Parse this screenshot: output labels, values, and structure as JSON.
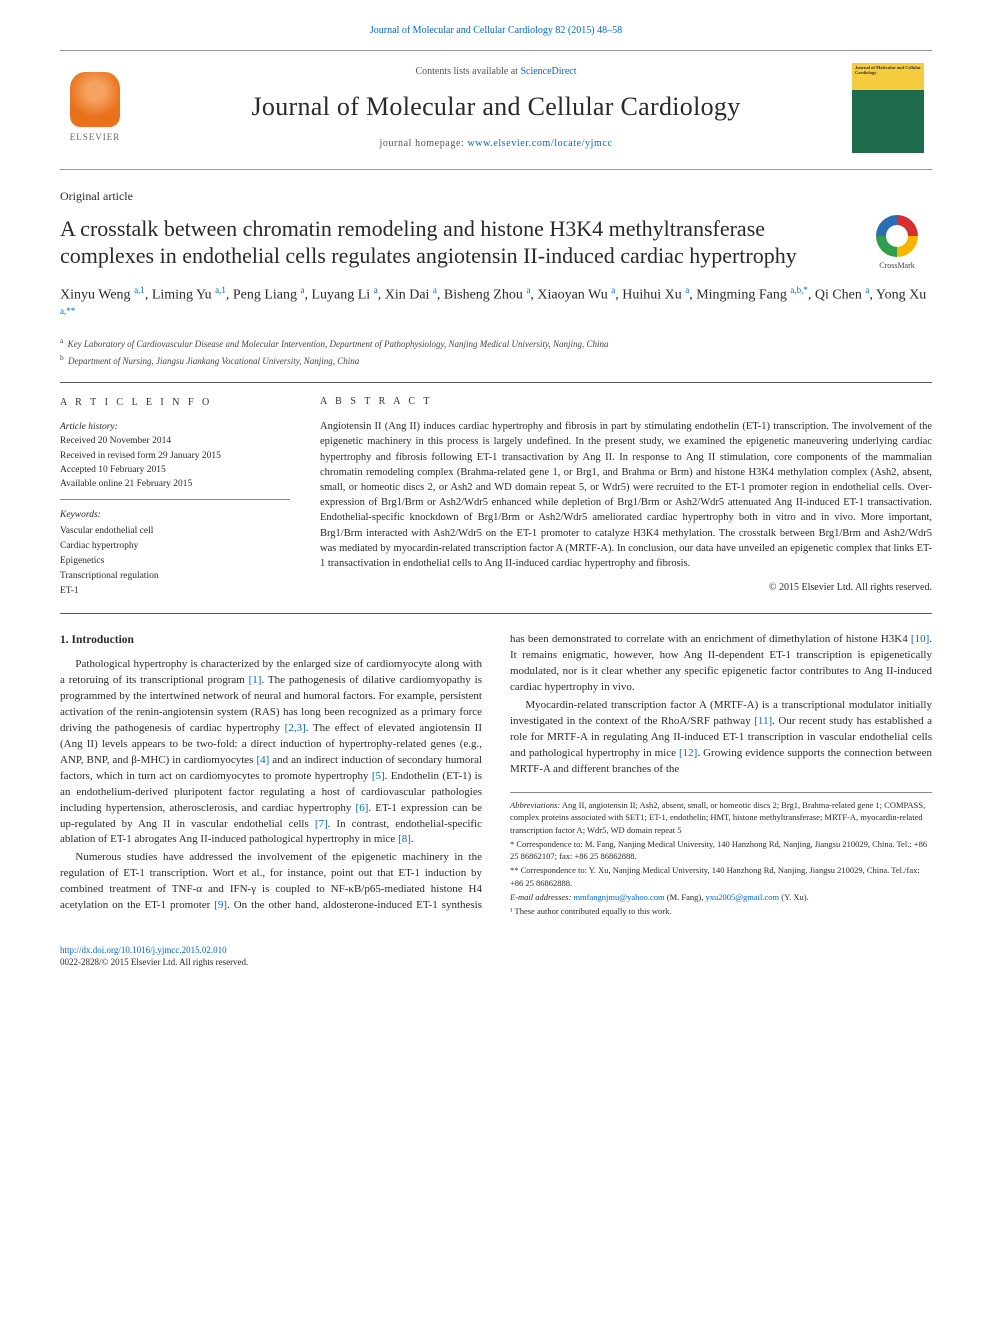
{
  "topLink": {
    "journalRef": "Journal of Molecular and Cellular Cardiology 82 (2015) 48–58"
  },
  "masthead": {
    "contentsLine": "Contents lists available at ",
    "contentsLinkText": "ScienceDirect",
    "journalName": "Journal of Molecular and Cellular Cardiology",
    "homepageLabel": "journal homepage: ",
    "homepageUrl": "www.elsevier.com/locate/yjmcc",
    "publisher": "ELSEVIER",
    "coverTitle": "Journal of Molecular and Cellular Cardiology"
  },
  "articleType": "Original article",
  "title": "A crosstalk between chromatin remodeling and histone H3K4 methyltransferase complexes in endothelial cells regulates angiotensin II-induced cardiac hypertrophy",
  "crossmark": "CrossMark",
  "authorsHtml": "Xinyu Weng <sup>a,1</sup>, Liming Yu <sup>a,1</sup>, Peng Liang <sup>a</sup>, Luyang Li <sup>a</sup>, Xin Dai <sup>a</sup>, Bisheng Zhou <sup>a</sup>, Xiaoyan Wu <sup>a</sup>, Huihui Xu <sup>a</sup>, Mingming Fang <sup>a,b,*</sup>, Qi Chen <sup>a</sup>, Yong Xu <sup>a,**</sup>",
  "affiliations": {
    "a": "Key Laboratory of Cardiovascular Disease and Molecular Intervention, Department of Pathophysiology, Nanjing Medical University, Nanjing, China",
    "b": "Department of Nursing, Jiangsu Jiankang Vocational University, Nanjing, China"
  },
  "articleInfo": {
    "heading": "A R T I C L E   I N F O",
    "historyLabel": "Article history:",
    "received": "Received 20 November 2014",
    "revised": "Received in revised form 29 January 2015",
    "accepted": "Accepted 10 February 2015",
    "online": "Available online 21 February 2015",
    "keywordsLabel": "Keywords:",
    "keywords": [
      "Vascular endothelial cell",
      "Cardiac hypertrophy",
      "Epigenetics",
      "Transcriptional regulation",
      "ET-1"
    ]
  },
  "abstract": {
    "heading": "A B S T R A C T",
    "text": "Angiotensin II (Ang II) induces cardiac hypertrophy and fibrosis in part by stimulating endothelin (ET-1) transcription. The involvement of the epigenetic machinery in this process is largely undefined. In the present study, we examined the epigenetic maneuvering underlying cardiac hypertrophy and fibrosis following ET-1 transactivation by Ang II. In response to Ang II stimulation, core components of the mammalian chromatin remodeling complex (Brahma-related gene 1, or Brg1, and Brahma or Brm) and histone H3K4 methylation complex (Ash2, absent, small, or homeotic discs 2, or Ash2 and WD domain repeat 5, or Wdr5) were recruited to the ET-1 promoter region in endothelial cells. Over-expression of Brg1/Brm or Ash2/Wdr5 enhanced while depletion of Brg1/Brm or Ash2/Wdr5 attenuated Ang II-induced ET-1 transactivation. Endothelial-specific knockdown of Brg1/Brm or Ash2/Wdr5 ameliorated cardiac hypertrophy both in vitro and in vivo. More important, Brg1/Brm interacted with Ash2/Wdr5 on the ET-1 promoter to catalyze H3K4 methylation. The crosstalk between Brg1/Brm and Ash2/Wdr5 was mediated by myocardin-related transcription factor A (MRTF-A). In conclusion, our data have unveiled an epigenetic complex that links ET-1 transactivation in endothelial cells to Ang II-induced cardiac hypertrophy and fibrosis.",
    "copyright": "© 2015 Elsevier Ltd. All rights reserved."
  },
  "body": {
    "introHeading": "1. Introduction",
    "para1a": "Pathological hypertrophy is characterized by the enlarged size of cardiomyocyte along with a retoruing of its transcriptional program ",
    "ref1": "[1]",
    "para1b": ". The pathogenesis of dilative cardiomyopathy is programmed by the intertwined network of neural and humoral factors. For example, persistent activation of the renin-angiotensin system (RAS) has long been recognized as a primary force driving the pathogenesis of cardiac hypertrophy ",
    "ref23": "[2,3]",
    "para1c": ". The effect of elevated angiotensin II (Ang II) levels appears to be two-fold: a direct induction of hypertrophy-related genes (e.g., ANP, BNP, and β-MHC) in cardiomyocytes ",
    "ref4": "[4]",
    "para1d": " and an indirect induction of secondary humoral factors, which in turn act on ",
    "para2a": "cardiomyocytes to promote hypertrophy ",
    "ref5": "[5]",
    "para2b": ". Endothelin (ET-1) is an endothelium-derived pluripotent factor regulating a host of cardiovascular pathologies including hypertension, atherosclerosis, and cardiac hypertrophy ",
    "ref6": "[6]",
    "para2c": ". ET-1 expression can be up-regulated by Ang II in vascular endothelial cells ",
    "ref7": "[7]",
    "para2d": ". In contrast, endothelial-specific ablation of ET-1 abrogates Ang II-induced pathological hypertrophy in mice ",
    "ref8": "[8]",
    "para2e": ".",
    "para3a": "Numerous studies have addressed the involvement of the epigenetic machinery in the regulation of ET-1 transcription. Wort et al., for instance, point out that ET-1 induction by combined treatment of TNF-α and IFN-γ is coupled to NF-κB/p65-mediated histone H4 acetylation on the ET-1 promoter ",
    "ref9": "[9]",
    "para3b": ". On the other hand, aldosterone-induced ET-1 synthesis has been demonstrated to correlate with an enrichment of dimethylation of histone H3K4 ",
    "ref10": "[10]",
    "para3c": ". It remains enigmatic, however, how Ang II-dependent ET-1 transcription is epigenetically modulated, nor is it clear whether any specific epigenetic factor contributes to Ang II-induced cardiac hypertrophy in vivo.",
    "para4a": "Myocardin-related transcription factor A (MRTF-A) is a transcriptional modulator initially investigated in the context of the RhoA/SRF pathway ",
    "ref11": "[11]",
    "para4b": ". Our recent study has established a role for MRTF-A in regulating Ang II-induced ET-1 transcription in vascular endothelial cells and pathological hypertrophy in mice ",
    "ref12": "[12]",
    "para4c": ". Growing evidence supports the connection between MRTF-A and different branches of the"
  },
  "footnotes": {
    "abbrevLabel": "Abbreviations:",
    "abbrev": " Ang II, angiotensin II; Ash2, absent, small, or homeotic discs 2; Brg1, Brahma-related gene 1; COMPASS, complex proteins associated with SET1; ET-1, endothelin; HMT, histone methyltransferase; MRTF-A, myocardin-related transcription factor A; Wdr5, WD domain repeat 5",
    "corr1": "* Correspondence to: M. Fang, Nanjing Medical University, 140 Hanzhong Rd, Nanjing, Jiangsu 210029, China. Tel.: +86 25 86862107; fax: +86 25 86862888.",
    "corr2": "** Correspondence to: Y. Xu, Nanjing Medical University, 140 Hanzhong Rd, Nanjing, Jiangsu 210029, China. Tel./fax: +86 25 86862888.",
    "emailLabel": "E-mail addresses: ",
    "email1": "mmfangnjmu@yahoo.com",
    "email1Who": " (M. Fang), ",
    "email2": "yxu2005@gmail.com",
    "email2Who": " (Y. Xu).",
    "equal": "¹ These author contributed equally to this work."
  },
  "footer": {
    "doi": "http://dx.doi.org/10.1016/j.yjmcc.2015.02.010",
    "issn": "0022-2828/© 2015 Elsevier Ltd. All rights reserved."
  },
  "colors": {
    "link": "#0066cc",
    "accentOrange": "#e9711c",
    "text": "#2a2a2a",
    "rule": "#555555"
  }
}
